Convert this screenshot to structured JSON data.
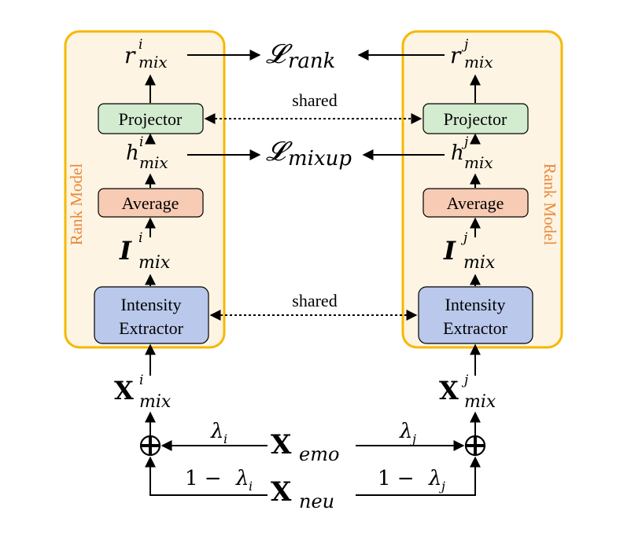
{
  "colors": {
    "rank_box_border": "#f5b800",
    "rank_box_fill": "#fdf4e3",
    "projector_fill": "#d3ecd0",
    "average_fill": "#f8cbb4",
    "extractor_fill": "#b9c8eb",
    "rank_label": "#e9883b"
  },
  "left": {
    "rank_label": "Rank Model",
    "projector": "Projector",
    "average": "Average",
    "extractor_line1": "Intensity",
    "extractor_line2": "Extractor",
    "r_sup": "i",
    "h_sup": "i",
    "I_sup": "i",
    "X_sup": "i",
    "lambda_sub": "i"
  },
  "right": {
    "rank_label": "Rank Model",
    "projector": "Projector",
    "average": "Average",
    "extractor_line1": "Intensity",
    "extractor_line2": "Extractor",
    "r_sup": "j",
    "h_sup": "j",
    "I_sup": "j",
    "X_sup": "j",
    "lambda_sub": "j"
  },
  "shared_top": "shared",
  "shared_bottom": "shared",
  "symbols": {
    "r": "r",
    "h": "h",
    "I": "I",
    "X": "X",
    "mix": "mix",
    "L": "𝓛",
    "rank": "rank",
    "mixup": "mixup",
    "emo": "emo",
    "neu": "neu",
    "lambda": "λ",
    "one_minus": "1 − ",
    "oplus": "⊕"
  }
}
